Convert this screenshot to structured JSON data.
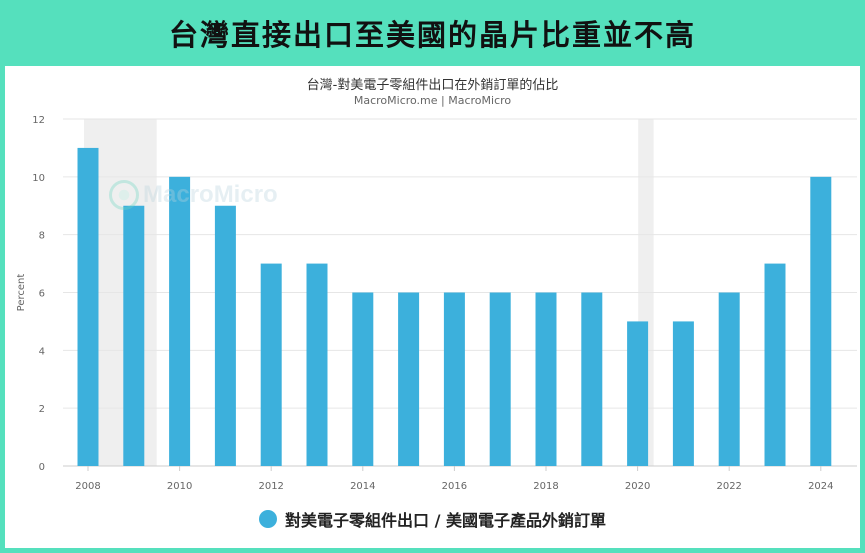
{
  "banner": {
    "title": "台灣直接出口至美國的晶片比重並不高"
  },
  "watermark": {
    "text": "MacroMicro"
  },
  "chart_data": {
    "type": "bar",
    "title": "台灣-對美電子零組件出口在外銷訂單的佔比",
    "subtitle": "MacroMicro.me | MacroMicro",
    "ylabel": "Percent",
    "xlabel": "",
    "ylim": [
      0,
      12
    ],
    "yticks": [
      0,
      2,
      4,
      6,
      8,
      10,
      12
    ],
    "categories": [
      2008,
      2009,
      2010,
      2011,
      2012,
      2013,
      2014,
      2015,
      2016,
      2017,
      2018,
      2019,
      2020,
      2021,
      2022,
      2023,
      2024
    ],
    "xtick_labels": [
      "2008",
      "2010",
      "2012",
      "2014",
      "2016",
      "2018",
      "2020",
      "2022",
      "2024"
    ],
    "series": [
      {
        "name": "對美電子零組件出口 / 美國電子產品外銷訂單",
        "color": "#3cb0dc",
        "values": [
          11,
          9,
          10,
          9,
          7,
          7,
          6,
          6,
          6,
          6,
          6,
          6,
          5,
          5,
          6,
          7,
          10
        ]
      }
    ],
    "shaded_periods": [
      [
        2008,
        2009.5
      ],
      [
        2020.1,
        2020.35
      ]
    ],
    "grid": true,
    "legend": "bottom"
  }
}
